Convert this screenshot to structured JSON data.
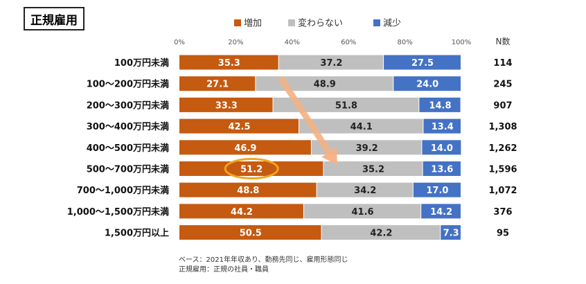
{
  "title": "正規雇用",
  "chart_data": {
    "type": "bar",
    "orientation": "horizontal",
    "stacked": true,
    "categories": [
      "100万円未満",
      "100〜200万円未満",
      "200〜300万円未満",
      "300〜400万円未満",
      "400〜500万円未満",
      "500〜700万円未満",
      "700〜1,000万円未満",
      "1,000〜1,500万円未満",
      "1,500万円以上"
    ],
    "series": [
      {
        "name": "増加",
        "color": "#C55A11",
        "values": [
          35.3,
          27.1,
          33.3,
          42.5,
          46.9,
          51.2,
          48.8,
          44.2,
          50.5
        ]
      },
      {
        "name": "変わらない",
        "color": "#BFBFBF",
        "values": [
          37.2,
          48.9,
          51.8,
          44.1,
          39.2,
          35.2,
          34.2,
          41.6,
          42.2
        ]
      },
      {
        "name": "減少",
        "color": "#4472C4",
        "values": [
          27.5,
          24.0,
          14.8,
          13.4,
          14.0,
          13.6,
          17.0,
          14.2,
          7.3
        ]
      }
    ],
    "n_header": "N数",
    "n_values": [
      "114",
      "245",
      "907",
      "1,308",
      "1,262",
      "1,596",
      "1,072",
      "376",
      "95"
    ],
    "xlim": [
      0,
      100
    ],
    "x_ticks": [
      "0%",
      "20%",
      "40%",
      "60%",
      "80%",
      "100%"
    ],
    "legend_position": "top",
    "highlight": {
      "category_index": 5,
      "series": "増加",
      "value": 51.2
    },
    "annotation": "arrow pointing from the first row toward the 500〜700万円未満 row"
  },
  "footnotes": [
    "ベース：2021年年収あり、勤務先同じ、雇用形態同じ",
    "正規雇用：正規の社員・職員"
  ]
}
